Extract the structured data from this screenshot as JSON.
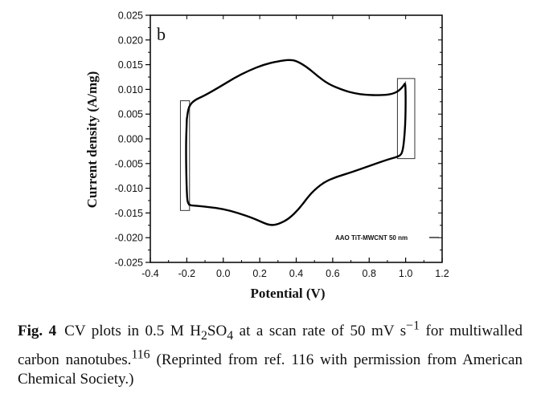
{
  "panel_label": "b",
  "caption": {
    "label": "Fig. 4",
    "parts": [
      {
        "text": "CV plots in 0.5 M H"
      },
      {
        "sub": "2"
      },
      {
        "text": "SO"
      },
      {
        "sub": "4"
      },
      {
        "text": " at a scan rate of 50 mV s"
      },
      {
        "sup": "−1"
      },
      {
        "text": " for multiwalled carbon nanotubes."
      },
      {
        "sup": "116"
      },
      {
        "text": " (Reprinted from ref. 116 with permission from American Chemical Society.)"
      }
    ]
  },
  "chart_data": {
    "type": "line",
    "title": "",
    "xlabel": "Potential (V)",
    "ylabel": "Current density (A/mg)",
    "xlim": [
      -0.4,
      1.2
    ],
    "ylim": [
      -0.025,
      0.025
    ],
    "x_ticks": [
      -0.4,
      -0.2,
      0.0,
      0.2,
      0.4,
      0.6,
      0.8,
      1.0,
      1.2
    ],
    "x_tick_labels": [
      "-0.4",
      "-0.2",
      "0.0",
      "0.2",
      "0.4",
      "0.6",
      "0.8",
      "1.0",
      "1.2"
    ],
    "y_ticks": [
      0.025,
      0.02,
      0.015,
      0.01,
      0.005,
      0.0,
      -0.005,
      -0.01,
      -0.015,
      -0.02,
      -0.025
    ],
    "y_tick_labels": [
      "0.025",
      "0.020",
      "0.015",
      "0.010",
      "0.005",
      "0.000",
      "-0.005",
      "-0.010",
      "-0.015",
      "-0.020",
      "-0.025"
    ],
    "grid": false,
    "legend_position": "bottom-right",
    "series": [
      {
        "name": "AAO TiT-MWCNT 50 nm",
        "color": "#000000",
        "points": [
          [
            -0.2,
            0.004
          ],
          [
            -0.19,
            0.0065
          ],
          [
            -0.16,
            0.0078
          ],
          [
            -0.1,
            0.0088
          ],
          [
            -0.02,
            0.0105
          ],
          [
            0.06,
            0.0123
          ],
          [
            0.14,
            0.0138
          ],
          [
            0.22,
            0.015
          ],
          [
            0.3,
            0.0157
          ],
          [
            0.36,
            0.016
          ],
          [
            0.4,
            0.0158
          ],
          [
            0.46,
            0.0145
          ],
          [
            0.52,
            0.0126
          ],
          [
            0.58,
            0.011
          ],
          [
            0.66,
            0.0098
          ],
          [
            0.72,
            0.0092
          ],
          [
            0.78,
            0.0089
          ],
          [
            0.86,
            0.0088
          ],
          [
            0.92,
            0.009
          ],
          [
            0.96,
            0.0096
          ],
          [
            0.99,
            0.0108
          ],
          [
            1.0,
            0.0115
          ],
          [
            1.0,
            0.004
          ],
          [
            0.99,
            -0.001
          ],
          [
            0.98,
            -0.003
          ],
          [
            0.96,
            -0.0036
          ],
          [
            0.9,
            -0.0042
          ],
          [
            0.8,
            -0.0055
          ],
          [
            0.7,
            -0.0068
          ],
          [
            0.62,
            -0.0077
          ],
          [
            0.55,
            -0.0088
          ],
          [
            0.48,
            -0.011
          ],
          [
            0.42,
            -0.014
          ],
          [
            0.36,
            -0.0162
          ],
          [
            0.3,
            -0.0173
          ],
          [
            0.26,
            -0.0175
          ],
          [
            0.22,
            -0.017
          ],
          [
            0.16,
            -0.016
          ],
          [
            0.08,
            -0.015
          ],
          [
            0.0,
            -0.0142
          ],
          [
            -0.08,
            -0.0138
          ],
          [
            -0.16,
            -0.0135
          ],
          [
            -0.19,
            -0.0134
          ],
          [
            -0.2,
            -0.012
          ],
          [
            -0.205,
            -0.002
          ],
          [
            -0.2,
            0.004
          ]
        ]
      }
    ],
    "highlight_boxes": [
      {
        "x": [
          -0.235,
          -0.185
        ],
        "y": [
          -0.0145,
          0.0077
        ]
      },
      {
        "x": [
          0.955,
          1.05
        ],
        "y": [
          -0.004,
          0.0122
        ]
      }
    ]
  }
}
